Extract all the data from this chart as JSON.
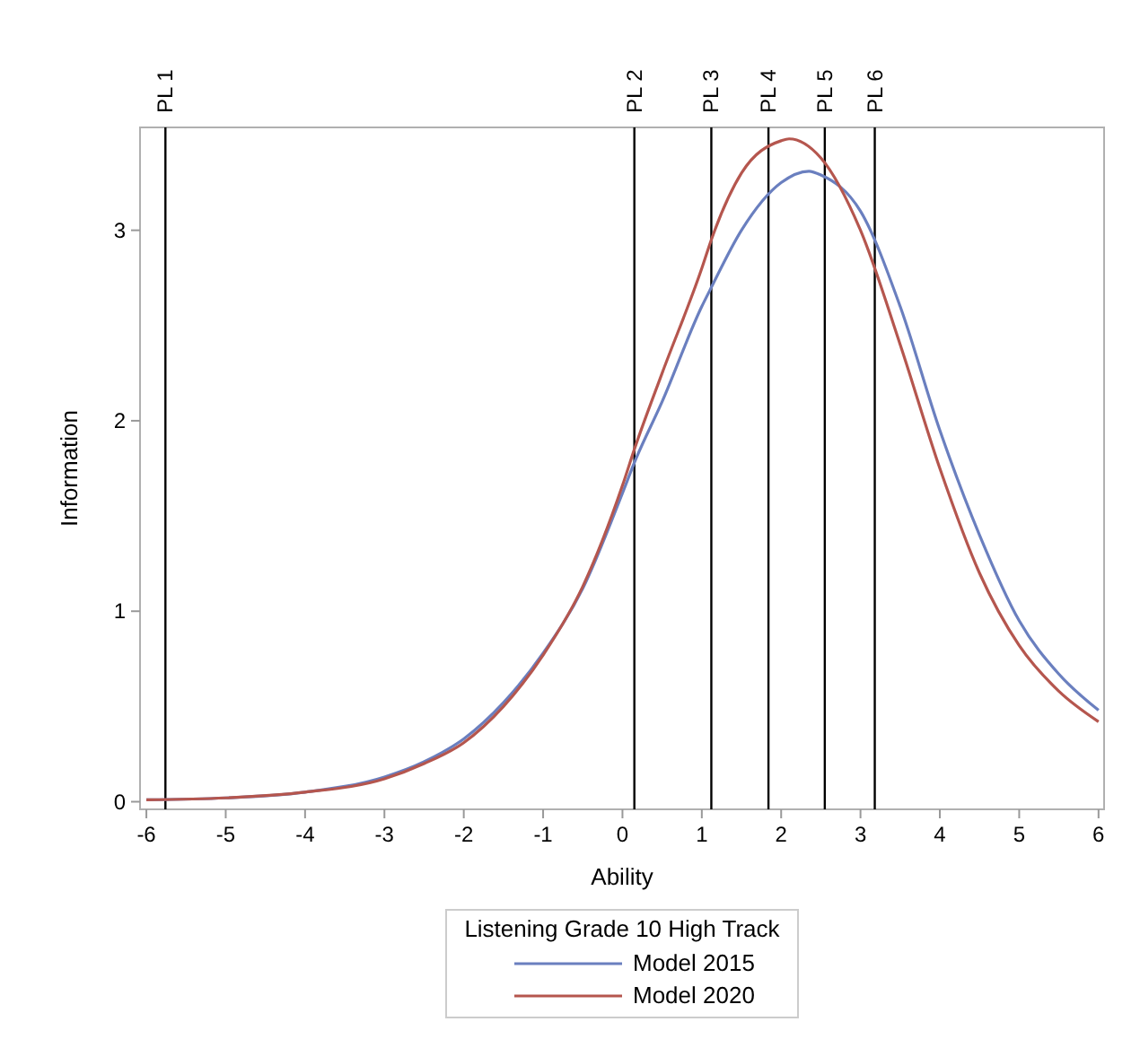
{
  "chart_data": {
    "type": "line",
    "xlabel": "Ability",
    "ylabel": "Information",
    "legend_title": "Listening Grade 10 High Track",
    "legend": "bottom",
    "grid": false,
    "xlim": [
      -6.08,
      6.07
    ],
    "ylim": [
      -0.04,
      3.54
    ],
    "xticks": [
      -6,
      -5,
      -4,
      -3,
      -2,
      -1,
      0,
      1,
      2,
      3,
      4,
      5,
      6
    ],
    "yticks": [
      0,
      1,
      2,
      3
    ],
    "ref_lines": [
      {
        "axis": "x",
        "value": -5.76,
        "label": "PL 1",
        "color": "#000000"
      },
      {
        "axis": "x",
        "value": 0.15,
        "label": "PL 2",
        "color": "#000000"
      },
      {
        "axis": "x",
        "value": 1.12,
        "label": "PL 3",
        "color": "#000000"
      },
      {
        "axis": "x",
        "value": 1.84,
        "label": "PL 4",
        "color": "#000000"
      },
      {
        "axis": "x",
        "value": 2.55,
        "label": "PL 5",
        "color": "#000000"
      },
      {
        "axis": "x",
        "value": 3.18,
        "label": "PL 6",
        "color": "#000000"
      }
    ],
    "series": [
      {
        "name": "Model 2015",
        "color": "#6a7fbf",
        "x": [
          -6,
          -5,
          -4,
          -3,
          -2.5,
          -2,
          -1.5,
          -1,
          -0.5,
          0,
          0.15,
          0.5,
          1,
          1.12,
          1.5,
          2,
          2.35,
          2.5,
          3,
          3.5,
          4,
          4.5,
          5,
          5.5,
          6
        ],
        "values": [
          0.01,
          0.02,
          0.05,
          0.13,
          0.21,
          0.33,
          0.52,
          0.78,
          1.12,
          1.62,
          1.78,
          2.1,
          2.6,
          2.7,
          3.0,
          3.25,
          3.31,
          3.29,
          3.1,
          2.6,
          1.95,
          1.4,
          0.95,
          0.67,
          0.48
        ]
      },
      {
        "name": "Model 2020",
        "color": "#b5564e",
        "x": [
          -6,
          -5,
          -4,
          -3,
          -2.5,
          -2,
          -1.5,
          -1,
          -0.5,
          0,
          0.15,
          0.5,
          1,
          1.12,
          1.5,
          2,
          2.1,
          2.5,
          3,
          3.5,
          4,
          4.5,
          5,
          5.5,
          6
        ],
        "values": [
          0.01,
          0.02,
          0.05,
          0.12,
          0.2,
          0.31,
          0.5,
          0.77,
          1.13,
          1.66,
          1.85,
          2.25,
          2.8,
          2.95,
          3.3,
          3.47,
          3.48,
          3.38,
          3.0,
          2.4,
          1.75,
          1.2,
          0.82,
          0.58,
          0.42
        ]
      }
    ]
  }
}
